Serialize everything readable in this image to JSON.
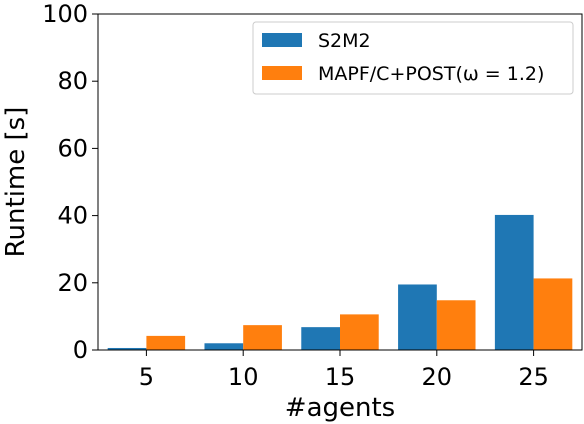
{
  "chart_data": {
    "type": "bar",
    "xlabel": "#agents",
    "ylabel": "Runtime [s]",
    "categories": [
      "5",
      "10",
      "15",
      "20",
      "25"
    ],
    "ylim": [
      0,
      100
    ],
    "yticks": [
      "0",
      "20",
      "40",
      "60",
      "80",
      "100"
    ],
    "grid": false,
    "legend_position": "top-right",
    "series": [
      {
        "name": "S2M2",
        "color": "#1f77b4",
        "values": [
          0.6,
          2.0,
          6.8,
          19.5,
          40.2
        ]
      },
      {
        "name": "MAPF/C+POST(ω = 1.2)",
        "color": "#ff7f0e",
        "values": [
          4.2,
          7.4,
          10.6,
          14.8,
          21.3
        ]
      }
    ]
  }
}
